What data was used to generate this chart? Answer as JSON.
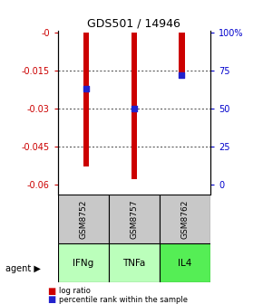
{
  "title": "GDS501 / 14946",
  "samples": [
    "GSM8752",
    "GSM8757",
    "GSM8762"
  ],
  "agents": [
    "IFNg",
    "TNFa",
    "IL4"
  ],
  "log_ratios": [
    -0.053,
    -0.058,
    -0.018
  ],
  "percentile_ranks": [
    63,
    50,
    72
  ],
  "bar_color": "#cc0000",
  "square_color": "#2222cc",
  "sample_box_color": "#c8c8c8",
  "agent_colors": [
    "#bbffbb",
    "#bbffbb",
    "#55ee55"
  ],
  "legend_log_ratio": "log ratio",
  "legend_percentile": "percentile rank within the sample",
  "agent_label": "agent",
  "left_yticks": [
    -0.0,
    -0.015,
    -0.03,
    -0.045,
    -0.06
  ],
  "left_yticklabels": [
    "-0",
    "-0.015",
    "-0.03",
    "-0.045",
    "-0.06"
  ],
  "right_yticklabels": [
    "0",
    "25",
    "50",
    "75",
    "100%"
  ],
  "ylim_min": -0.064,
  "ylim_max": 0.001
}
